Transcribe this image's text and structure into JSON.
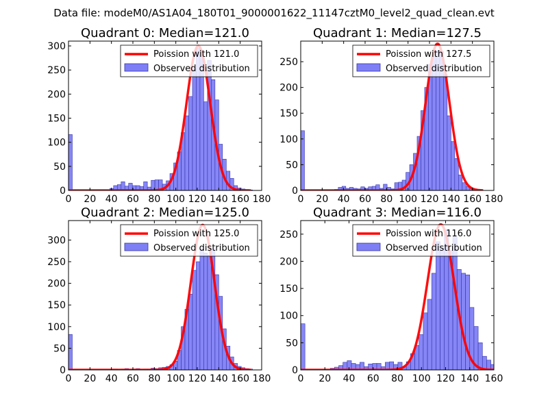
{
  "figure": {
    "suptitle": "Data file: modeM0/AS1A04_180T01_9000001622_11147cztM0_level2_quad_clean.evt"
  },
  "colors": {
    "bar_fill": "#7f7ff5",
    "bar_edge": "#3333aa",
    "poisson_line": "#ff0000",
    "axes": "#000000"
  },
  "chart_data": [
    {
      "type": "bar",
      "title": "Quadrant 0: Median=121.0",
      "bin_width": 3.5,
      "xlim": [
        0,
        180
      ],
      "ylim": [
        0,
        310
      ],
      "xticks": [
        0,
        20,
        40,
        60,
        80,
        100,
        120,
        140,
        160,
        180
      ],
      "yticks": [
        0,
        50,
        100,
        150,
        200,
        250,
        300
      ],
      "legend": {
        "position": "top-right",
        "line_label": "Poission with 121.0",
        "bar_label": "Observed distribution"
      },
      "poisson": {
        "mean": 121.0,
        "peak": 300,
        "sigma": 11,
        "x_range": [
          0,
          170
        ]
      },
      "bins_x": [
        0,
        3.5,
        7,
        10.5,
        14,
        17.5,
        21,
        24.5,
        28,
        31.5,
        35,
        38.5,
        42,
        45.5,
        49,
        52.5,
        56,
        59.5,
        63,
        66.5,
        70,
        73.5,
        77,
        80.5,
        84,
        87.5,
        91,
        94.5,
        98,
        101.5,
        105,
        108.5,
        112,
        115.5,
        119,
        122.5,
        126,
        129.5,
        133,
        136.5,
        140,
        143.5,
        147,
        150.5,
        154,
        157.5,
        161,
        164.5,
        168
      ],
      "bins_y": [
        116,
        0,
        0,
        0,
        0,
        0,
        0,
        0,
        0,
        0,
        0,
        4,
        10,
        12,
        18,
        9,
        15,
        10,
        10,
        8,
        18,
        7,
        21,
        22,
        22,
        13,
        20,
        35,
        57,
        80,
        120,
        155,
        195,
        253,
        295,
        280,
        184,
        270,
        230,
        188,
        96,
        65,
        40,
        25,
        10,
        5,
        3,
        2,
        1
      ]
    },
    {
      "type": "bar",
      "title": "Quadrant 1: Median=127.5",
      "bin_width": 3.5,
      "xlim": [
        0,
        180
      ],
      "ylim": [
        0,
        290
      ],
      "xticks": [
        0,
        20,
        40,
        60,
        80,
        100,
        120,
        140,
        160,
        180
      ],
      "yticks": [
        0,
        50,
        100,
        150,
        200,
        250
      ],
      "legend": {
        "position": "top-right",
        "line_label": "Poission with 127.5",
        "bar_label": "Observed distribution"
      },
      "poisson": {
        "mean": 127.5,
        "peak": 285,
        "sigma": 11,
        "x_range": [
          0,
          170
        ]
      },
      "bins_x": [
        0,
        3.5,
        7,
        10.5,
        14,
        17.5,
        21,
        24.5,
        28,
        31.5,
        35,
        38.5,
        42,
        45.5,
        49,
        52.5,
        56,
        59.5,
        63,
        66.5,
        70,
        73.5,
        77,
        80.5,
        84,
        87.5,
        91,
        94.5,
        98,
        101.5,
        105,
        108.5,
        112,
        115.5,
        119,
        122.5,
        126,
        129.5,
        133,
        136.5,
        140,
        143.5,
        147,
        150.5,
        154,
        157.5,
        161,
        164.5
      ],
      "bins_y": [
        116,
        0,
        0,
        0,
        0,
        0,
        0,
        0,
        0,
        2,
        6,
        8,
        4,
        6,
        4,
        3,
        7,
        4,
        7,
        8,
        11,
        4,
        12,
        6,
        3,
        15,
        16,
        20,
        35,
        50,
        72,
        105,
        155,
        200,
        245,
        260,
        272,
        270,
        225,
        145,
        95,
        62,
        30,
        15,
        8,
        4,
        3,
        2
      ]
    },
    {
      "type": "bar",
      "title": "Quadrant 2: Median=125.0",
      "bin_width": 3.5,
      "xlim": [
        0,
        180
      ],
      "ylim": [
        0,
        345
      ],
      "xticks": [
        0,
        20,
        40,
        60,
        80,
        100,
        120,
        140,
        160,
        180
      ],
      "yticks": [
        0,
        50,
        100,
        150,
        200,
        250,
        300
      ],
      "legend": {
        "position": "top-right",
        "line_label": "Poission with 125.0",
        "bar_label": "Observed distribution"
      },
      "poisson": {
        "mean": 125.0,
        "peak": 335,
        "sigma": 11,
        "x_range": [
          0,
          170
        ]
      },
      "bins_x": [
        0,
        3.5,
        7,
        10.5,
        14,
        17.5,
        21,
        24.5,
        28,
        31.5,
        35,
        38.5,
        42,
        45.5,
        49,
        52.5,
        56,
        59.5,
        63,
        66.5,
        70,
        73.5,
        77,
        80.5,
        84,
        87.5,
        91,
        94.5,
        98,
        101.5,
        105,
        108.5,
        112,
        115.5,
        119,
        122.5,
        126,
        129.5,
        133,
        136.5,
        140,
        143.5,
        147,
        150.5,
        154,
        157.5,
        161,
        164.5,
        168
      ],
      "bins_y": [
        82,
        0,
        0,
        0,
        0,
        0,
        0,
        0,
        0,
        0,
        0,
        1,
        2,
        1,
        2,
        3,
        1,
        2,
        3,
        1,
        2,
        2,
        4,
        3,
        5,
        6,
        8,
        12,
        20,
        45,
        100,
        140,
        175,
        230,
        250,
        280,
        270,
        265,
        280,
        220,
        170,
        95,
        55,
        30,
        15,
        8,
        5,
        3,
        2
      ]
    },
    {
      "type": "bar",
      "title": "Quadrant 3: Median=116.0",
      "bin_width": 3.5,
      "xlim": [
        0,
        160
      ],
      "ylim": [
        0,
        275
      ],
      "xticks": [
        0,
        20,
        40,
        60,
        80,
        100,
        120,
        140,
        160
      ],
      "yticks": [
        0,
        50,
        100,
        150,
        200,
        250
      ],
      "legend": {
        "position": "top-right",
        "line_label": "Poission with 116.0",
        "bar_label": "Observed distribution"
      },
      "poisson": {
        "mean": 116.0,
        "peak": 268,
        "sigma": 11,
        "x_range": [
          0,
          160
        ]
      },
      "bins_x": [
        0,
        3.5,
        7,
        10.5,
        14,
        17.5,
        21,
        24.5,
        28,
        31.5,
        35,
        38.5,
        42,
        45.5,
        49,
        52.5,
        56,
        59.5,
        63,
        66.5,
        70,
        73.5,
        77,
        80.5,
        84,
        87.5,
        91,
        94.5,
        98,
        101.5,
        105,
        108.5,
        112,
        115.5,
        119,
        122.5,
        126,
        129.5,
        133,
        136.5,
        140,
        143.5,
        147,
        150.5,
        154,
        157.5
      ],
      "bins_y": [
        85,
        0,
        0,
        0,
        0,
        0,
        0,
        3,
        5,
        8,
        14,
        17,
        12,
        10,
        14,
        6,
        11,
        12,
        12,
        6,
        14,
        15,
        10,
        14,
        6,
        15,
        30,
        45,
        65,
        105,
        130,
        178,
        236,
        225,
        258,
        220,
        245,
        185,
        178,
        175,
        115,
        80,
        50,
        25,
        18,
        10
      ]
    }
  ]
}
